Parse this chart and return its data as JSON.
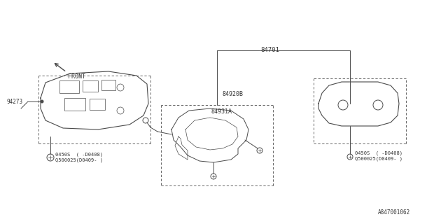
{
  "bg_color": "#ffffff",
  "line_color": "#4a4a4a",
  "text_color": "#333333",
  "diagram_id": "A847001062",
  "label_84701": "84701",
  "label_84920B": "84920B",
  "label_84931A": "84931A",
  "label_94273": "94273",
  "bolt_label": "0450S  ( -D0408)\nQ500025(D0409- )",
  "front_text": "FRONT",
  "figsize": [
    6.4,
    3.2
  ],
  "dpi": 100
}
